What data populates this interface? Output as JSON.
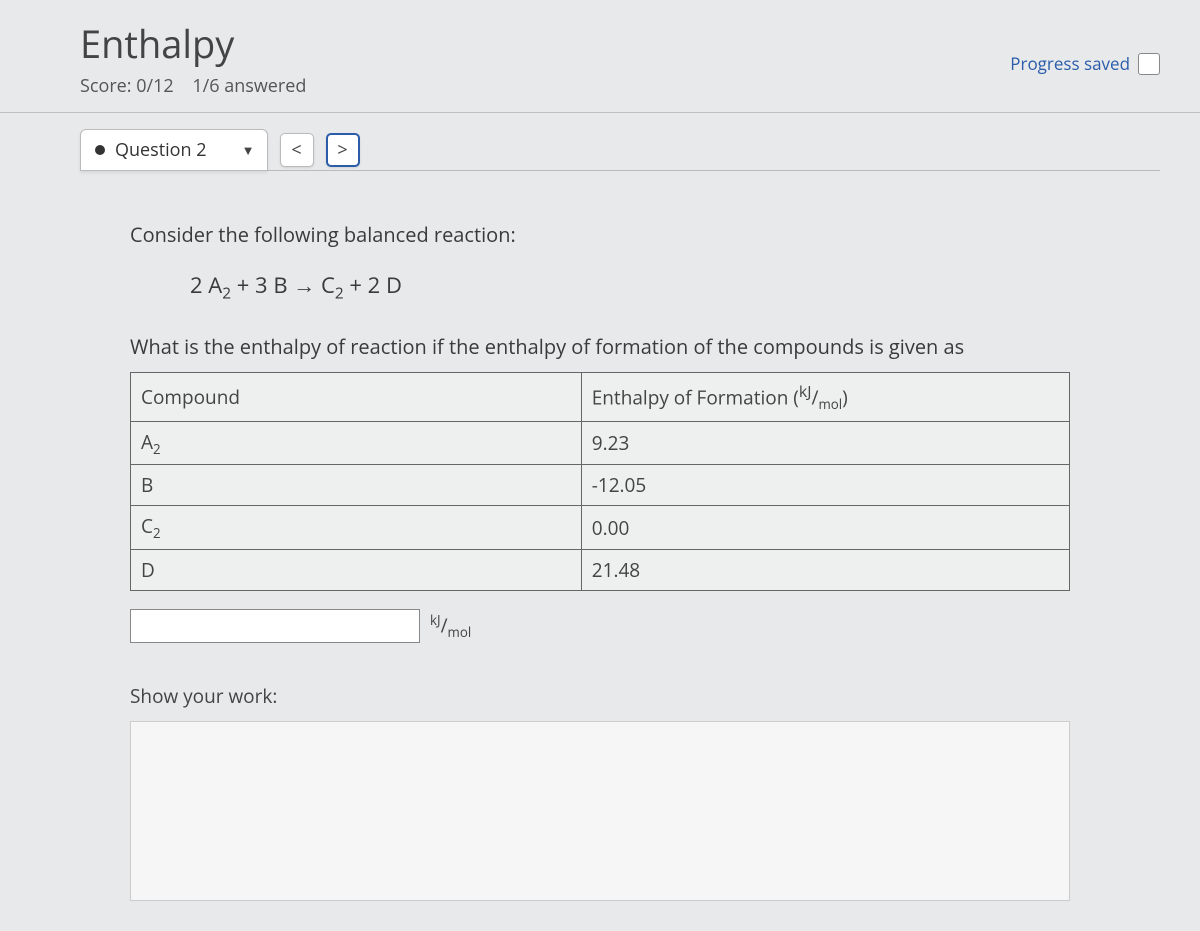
{
  "page": {
    "title": "Enthalpy",
    "score_label": "Score: 0/12",
    "answered_label": "1/6 answered",
    "progress_saved": "Progress saved"
  },
  "question_nav": {
    "current_label": "Question 2",
    "prev_symbol": "<",
    "next_symbol": ">"
  },
  "question": {
    "prompt_intro": "Consider the following balanced reaction:",
    "equation_html": "2 A<sub>2</sub> + 3 B → C<sub>2</sub> + 2 D",
    "question_text": "What is the enthalpy of reaction if the enthalpy of formation of the compounds is given as",
    "table": {
      "headers": [
        "Compound",
        "Enthalpy of Formation (<sup>kJ</sup>/<sub>mol</sub>)"
      ],
      "rows": [
        [
          "A<sub>2</sub>",
          "9.23"
        ],
        [
          "B",
          "-12.05"
        ],
        [
          "C<sub>2</sub>",
          "0.00"
        ],
        [
          "D",
          "21.48"
        ]
      ]
    },
    "answer_unit_html": "<sup>kJ</sup>/<sub>mol</sub>",
    "show_work_label": "Show your work:"
  },
  "colors": {
    "background": "#e8e9eb",
    "accent": "#2a5caa",
    "border": "#bbbbbb",
    "text": "#333333"
  }
}
